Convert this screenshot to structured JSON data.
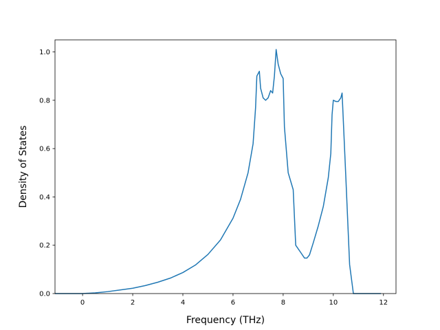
{
  "chart_data": {
    "type": "line",
    "title": "",
    "xlabel": "Frequency (THz)",
    "ylabel": "Density of States",
    "xlim": [
      -1.1,
      12.5
    ],
    "ylim": [
      0.0,
      1.05
    ],
    "xticks": [
      0,
      2,
      4,
      6,
      8,
      10,
      12
    ],
    "yticks": [
      0.0,
      0.2,
      0.4,
      0.6,
      0.8,
      1.0
    ],
    "xtick_labels": [
      "0",
      "2",
      "4",
      "6",
      "8",
      "10",
      "12"
    ],
    "ytick_labels": [
      "0.0",
      "0.2",
      "0.4",
      "0.6",
      "0.8",
      "1.0"
    ],
    "grid": false,
    "legend": false,
    "line_color": "#1f77b4",
    "series": [
      {
        "x": [
          -1.1,
          -0.5,
          0.0,
          0.5,
          1.0,
          1.5,
          2.0,
          2.5,
          3.0,
          3.5,
          4.0,
          4.5,
          5.0,
          5.5,
          6.0,
          6.3,
          6.6,
          6.8,
          6.9,
          6.95,
          7.05,
          7.1,
          7.2,
          7.3,
          7.4,
          7.5,
          7.58,
          7.65,
          7.72,
          7.8,
          7.9,
          8.0,
          8.05,
          8.2,
          8.4,
          8.5,
          8.7,
          8.85,
          8.95,
          9.05,
          9.2,
          9.4,
          9.6,
          9.8,
          9.9,
          9.95,
          10.0,
          10.1,
          10.2,
          10.3,
          10.35,
          10.5,
          10.65,
          10.75,
          10.8,
          11.0,
          11.5,
          11.9
        ],
        "y": [
          0.0,
          0.0,
          0.0,
          0.003,
          0.008,
          0.015,
          0.022,
          0.033,
          0.047,
          0.064,
          0.087,
          0.118,
          0.162,
          0.222,
          0.312,
          0.39,
          0.5,
          0.62,
          0.77,
          0.9,
          0.92,
          0.85,
          0.81,
          0.8,
          0.81,
          0.84,
          0.83,
          0.9,
          1.01,
          0.95,
          0.91,
          0.89,
          0.69,
          0.5,
          0.43,
          0.2,
          0.17,
          0.147,
          0.147,
          0.16,
          0.21,
          0.28,
          0.36,
          0.48,
          0.58,
          0.74,
          0.8,
          0.795,
          0.795,
          0.81,
          0.83,
          0.48,
          0.12,
          0.04,
          0.0,
          0.0,
          0.0,
          0.0
        ]
      }
    ]
  }
}
